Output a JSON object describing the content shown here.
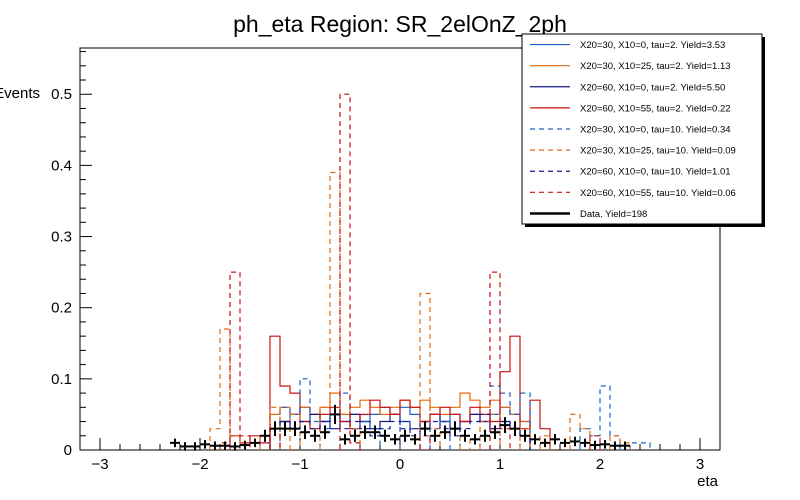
{
  "chart_data": {
    "type": "histogram",
    "title": "ph_eta Region: SR_2elOnZ_2ph",
    "xlabel": "eta",
    "ylabel": "Events",
    "xlim": [
      -3.2,
      3.2
    ],
    "ylim": [
      0,
      0.565
    ],
    "x_ticks": [
      -3,
      -2,
      -1,
      0,
      1,
      2,
      3
    ],
    "x_tick_labels": [
      "−3",
      "−2",
      "−1",
      "0",
      "1",
      "2",
      "3"
    ],
    "y_ticks": [
      0,
      0.1,
      0.2,
      0.3,
      0.4,
      0.5
    ],
    "y_tick_labels": [
      "0",
      "0.1",
      "0.2",
      "0.3",
      "0.4",
      "0.5"
    ],
    "bin_width": 0.1,
    "series": [
      {
        "name": "X20=30, X10=0, tau=2. Yield=3.53",
        "color": "#1f5fc8",
        "dash": false,
        "bins": [
          [
            -1.3,
            0.03
          ],
          [
            -1.2,
            0.04
          ],
          [
            -1.1,
            0.05
          ],
          [
            -1.0,
            0.06
          ],
          [
            -0.9,
            0.05
          ],
          [
            -0.8,
            0.04
          ],
          [
            -0.7,
            0.05
          ],
          [
            -0.6,
            0.04
          ],
          [
            -0.5,
            0.05
          ],
          [
            -0.4,
            0.04
          ],
          [
            -0.3,
            0.05
          ],
          [
            -0.2,
            0.06
          ],
          [
            -0.1,
            0.05
          ],
          [
            0.0,
            0.06
          ],
          [
            0.1,
            0.05
          ],
          [
            0.2,
            0.04
          ],
          [
            0.3,
            0.05
          ],
          [
            0.4,
            0.04
          ],
          [
            0.5,
            0.05
          ],
          [
            0.6,
            0.04
          ],
          [
            0.7,
            0.05
          ],
          [
            0.8,
            0.04
          ],
          [
            0.9,
            0.05
          ],
          [
            1.0,
            0.06
          ],
          [
            1.1,
            0.05
          ],
          [
            1.2,
            0.04
          ]
        ]
      },
      {
        "name": "X20=30, X10=25, tau=2. Yield=1.13",
        "color": "#e06a10",
        "dash": false,
        "bins": [
          [
            -1.3,
            0.05
          ],
          [
            -1.2,
            0.06
          ],
          [
            -1.1,
            0.05
          ],
          [
            -1.0,
            0.06
          ],
          [
            -0.9,
            0.05
          ],
          [
            -0.8,
            0.06
          ],
          [
            -0.7,
            0.08
          ],
          [
            -0.6,
            0.05
          ],
          [
            -0.5,
            0.06
          ],
          [
            -0.4,
            0.07
          ],
          [
            -0.3,
            0.06
          ],
          [
            -0.2,
            0.05
          ],
          [
            -0.1,
            0.06
          ],
          [
            0.0,
            0.07
          ],
          [
            0.1,
            0.06
          ],
          [
            0.2,
            0.07
          ],
          [
            0.3,
            0.06
          ],
          [
            0.4,
            0.05
          ],
          [
            0.5,
            0.06
          ],
          [
            0.6,
            0.08
          ],
          [
            0.7,
            0.07
          ],
          [
            0.8,
            0.06
          ],
          [
            0.9,
            0.07
          ],
          [
            1.0,
            0.06
          ],
          [
            1.1,
            0.05
          ],
          [
            1.2,
            0.04
          ]
        ]
      },
      {
        "name": "X20=60, X10=0, tau=2. Yield=5.50",
        "color": "#1a1a8c",
        "dash": false,
        "bins": [
          [
            -1.3,
            0.03
          ],
          [
            -1.2,
            0.04
          ],
          [
            -1.1,
            0.03
          ],
          [
            -1.0,
            0.04
          ],
          [
            -0.9,
            0.05
          ],
          [
            -0.8,
            0.04
          ],
          [
            -0.7,
            0.03
          ],
          [
            -0.6,
            0.04
          ],
          [
            -0.5,
            0.05
          ],
          [
            -0.4,
            0.04
          ],
          [
            -0.3,
            0.03
          ],
          [
            -0.2,
            0.04
          ],
          [
            -0.1,
            0.05
          ],
          [
            0.0,
            0.04
          ],
          [
            0.1,
            0.03
          ],
          [
            0.2,
            0.04
          ],
          [
            0.3,
            0.05
          ],
          [
            0.4,
            0.04
          ],
          [
            0.5,
            0.03
          ],
          [
            0.6,
            0.04
          ],
          [
            0.7,
            0.05
          ],
          [
            0.8,
            0.04
          ],
          [
            0.9,
            0.03
          ],
          [
            1.0,
            0.04
          ],
          [
            1.1,
            0.03
          ],
          [
            1.2,
            0.02
          ]
        ]
      },
      {
        "name": "X20=60, X10=55, tau=2. Yield=0.22",
        "color": "#cc1111",
        "dash": false,
        "bins": [
          [
            -1.7,
            0.02
          ],
          [
            -1.6,
            0.01
          ],
          [
            -1.5,
            0.02
          ],
          [
            -1.4,
            0.01
          ],
          [
            -1.3,
            0.16
          ],
          [
            -1.2,
            0.09
          ],
          [
            -1.1,
            0.08
          ],
          [
            -1.0,
            0.04
          ],
          [
            -0.9,
            0.03
          ],
          [
            -0.8,
            0.05
          ],
          [
            -0.7,
            0.06
          ],
          [
            -0.6,
            0.04
          ],
          [
            -0.5,
            0.03
          ],
          [
            -0.4,
            0.05
          ],
          [
            -0.3,
            0.07
          ],
          [
            -0.2,
            0.06
          ],
          [
            -0.1,
            0.05
          ],
          [
            0.0,
            0.07
          ],
          [
            0.1,
            0.06
          ],
          [
            0.2,
            0.04
          ],
          [
            0.3,
            0.05
          ],
          [
            0.4,
            0.06
          ],
          [
            0.5,
            0.05
          ],
          [
            0.6,
            0.04
          ],
          [
            0.7,
            0.06
          ],
          [
            0.8,
            0.05
          ],
          [
            0.9,
            0.04
          ],
          [
            1.0,
            0.11
          ],
          [
            1.1,
            0.16
          ],
          [
            1.2,
            0.03
          ],
          [
            1.3,
            0.07
          ],
          [
            1.4,
            0.03
          ]
        ]
      },
      {
        "name": "X20=30, X10=0, tau=10. Yield=0.34",
        "color": "#1f5fc8",
        "dash": true,
        "bins": [
          [
            -1.2,
            0.06
          ],
          [
            -1.1,
            0.05
          ],
          [
            -1.0,
            0.1
          ],
          [
            -0.9,
            0.04
          ],
          [
            -0.8,
            0.03
          ],
          [
            -0.7,
            0.05
          ],
          [
            -0.6,
            0.08
          ],
          [
            -0.5,
            0.03
          ],
          [
            -0.4,
            0.04
          ],
          [
            -0.3,
            0.03
          ],
          [
            0.0,
            0.04
          ],
          [
            0.1,
            0.03
          ],
          [
            0.3,
            0.03
          ],
          [
            0.4,
            0.04
          ],
          [
            0.9,
            0.09
          ],
          [
            1.0,
            0.08
          ],
          [
            1.1,
            0.05
          ],
          [
            1.2,
            0.08
          ],
          [
            1.8,
            0.03
          ],
          [
            1.9,
            0.02
          ],
          [
            2.0,
            0.09
          ],
          [
            2.1,
            0.02
          ],
          [
            2.3,
            0.01
          ],
          [
            2.4,
            0.01
          ]
        ]
      },
      {
        "name": "X20=30, X10=25, tau=10. Yield=0.09",
        "color": "#e06a10",
        "dash": true,
        "bins": [
          [
            -1.9,
            0.03
          ],
          [
            -1.8,
            0.17
          ],
          [
            -1.7,
            0.02
          ],
          [
            -1.4,
            0.02
          ],
          [
            -1.3,
            0.06
          ],
          [
            -1.1,
            0.05
          ],
          [
            -0.8,
            0.06
          ],
          [
            -0.7,
            0.39
          ],
          [
            -0.6,
            0.05
          ],
          [
            -0.5,
            0.03
          ],
          [
            0.2,
            0.22
          ],
          [
            0.3,
            0.03
          ],
          [
            0.6,
            0.02
          ],
          [
            0.8,
            0.04
          ],
          [
            0.9,
            0.05
          ],
          [
            1.2,
            0.03
          ],
          [
            1.4,
            0.02
          ],
          [
            1.7,
            0.05
          ],
          [
            1.8,
            0.03
          ],
          [
            2.1,
            0.02
          ],
          [
            2.2,
            0.01
          ]
        ]
      },
      {
        "name": "X20=60, X10=0, tau=10. Yield=1.01",
        "color": "#1a1a8c",
        "dash": true,
        "bins": [
          [
            -1.3,
            0.03
          ],
          [
            -1.2,
            0.04
          ],
          [
            -1.1,
            0.03
          ],
          [
            -1.0,
            0.04
          ],
          [
            -0.9,
            0.03
          ],
          [
            -0.8,
            0.04
          ],
          [
            -0.7,
            0.05
          ],
          [
            -0.6,
            0.03
          ],
          [
            -0.5,
            0.04
          ],
          [
            -0.4,
            0.03
          ],
          [
            -0.3,
            0.02
          ],
          [
            -0.2,
            0.03
          ],
          [
            -0.1,
            0.04
          ],
          [
            0.0,
            0.03
          ],
          [
            0.1,
            0.02
          ],
          [
            0.2,
            0.03
          ],
          [
            0.3,
            0.04
          ],
          [
            0.4,
            0.03
          ],
          [
            0.5,
            0.02
          ],
          [
            0.6,
            0.03
          ],
          [
            0.7,
            0.04
          ],
          [
            0.8,
            0.05
          ],
          [
            0.9,
            0.03
          ],
          [
            1.0,
            0.04
          ],
          [
            1.1,
            0.03
          ],
          [
            1.2,
            0.02
          ]
        ]
      },
      {
        "name": "X20=60, X10=55, tau=10. Yield=0.06",
        "color": "#cc1111",
        "dash": true,
        "bins": [
          [
            -1.8,
            0.01
          ],
          [
            -1.7,
            0.25
          ],
          [
            -1.6,
            0.02
          ],
          [
            -1.3,
            0.03
          ],
          [
            -0.6,
            0.5
          ],
          [
            -0.5,
            0.01
          ],
          [
            0.2,
            0.02
          ],
          [
            0.9,
            0.25
          ],
          [
            1.0,
            0.03
          ],
          [
            1.9,
            0.02
          ]
        ]
      },
      {
        "name": "Data. Yield=198",
        "color": "#000000",
        "dash": false,
        "style": "points",
        "points": [
          [
            -2.25,
            0.01
          ],
          [
            -2.15,
            0.005
          ],
          [
            -2.05,
            0.005
          ],
          [
            -1.95,
            0.008
          ],
          [
            -1.85,
            0.006
          ],
          [
            -1.75,
            0.006
          ],
          [
            -1.65,
            0.005
          ],
          [
            -1.55,
            0.007
          ],
          [
            -1.45,
            0.01
          ],
          [
            -1.35,
            0.02
          ],
          [
            -1.25,
            0.03
          ],
          [
            -1.15,
            0.03
          ],
          [
            -1.05,
            0.03
          ],
          [
            -0.95,
            0.025
          ],
          [
            -0.85,
            0.02
          ],
          [
            -0.75,
            0.025
          ],
          [
            -0.65,
            0.05
          ],
          [
            -0.55,
            0.015
          ],
          [
            -0.45,
            0.02
          ],
          [
            -0.35,
            0.025
          ],
          [
            -0.25,
            0.025
          ],
          [
            -0.15,
            0.02
          ],
          [
            -0.05,
            0.015
          ],
          [
            0.05,
            0.02
          ],
          [
            0.15,
            0.015
          ],
          [
            0.25,
            0.03
          ],
          [
            0.35,
            0.02
          ],
          [
            0.45,
            0.025
          ],
          [
            0.55,
            0.03
          ],
          [
            0.65,
            0.02
          ],
          [
            0.75,
            0.015
          ],
          [
            0.85,
            0.02
          ],
          [
            0.95,
            0.025
          ],
          [
            1.05,
            0.035
          ],
          [
            1.15,
            0.03
          ],
          [
            1.25,
            0.02
          ],
          [
            1.35,
            0.015
          ],
          [
            1.45,
            0.01
          ],
          [
            1.55,
            0.015
          ],
          [
            1.65,
            0.01
          ],
          [
            1.75,
            0.012
          ],
          [
            1.85,
            0.01
          ],
          [
            1.95,
            0.007
          ],
          [
            2.05,
            0.008
          ],
          [
            2.15,
            0.006
          ],
          [
            2.25,
            0.006
          ]
        ]
      }
    ],
    "legend": [
      {
        "label": "X20=30, X10=0, tau=2. Yield=3.53",
        "color": "#1f5fc8",
        "dash": false,
        "thick": false
      },
      {
        "label": "X20=30, X10=25, tau=2. Yield=1.13",
        "color": "#e06a10",
        "dash": false,
        "thick": false
      },
      {
        "label": "X20=60, X10=0, tau=2. Yield=5.50",
        "color": "#1a1a8c",
        "dash": false,
        "thick": false
      },
      {
        "label": "X20=60, X10=55, tau=2. Yield=0.22",
        "color": "#cc1111",
        "dash": false,
        "thick": false
      },
      {
        "label": "X20=30, X10=0, tau=10. Yield=0.34",
        "color": "#1f5fc8",
        "dash": true,
        "thick": false
      },
      {
        "label": "X20=30, X10=25, tau=10. Yield=0.09",
        "color": "#e06a10",
        "dash": true,
        "thick": false
      },
      {
        "label": "X20=60, X10=0, tau=10. Yield=1.01",
        "color": "#1a1a8c",
        "dash": true,
        "thick": false
      },
      {
        "label": "X20=60, X10=55, tau=10. Yield=0.06",
        "color": "#cc1111",
        "dash": true,
        "thick": false
      },
      {
        "label": "Data. Yield=198",
        "color": "#000000",
        "dash": false,
        "thick": true
      }
    ],
    "legend_position": "top-right"
  }
}
